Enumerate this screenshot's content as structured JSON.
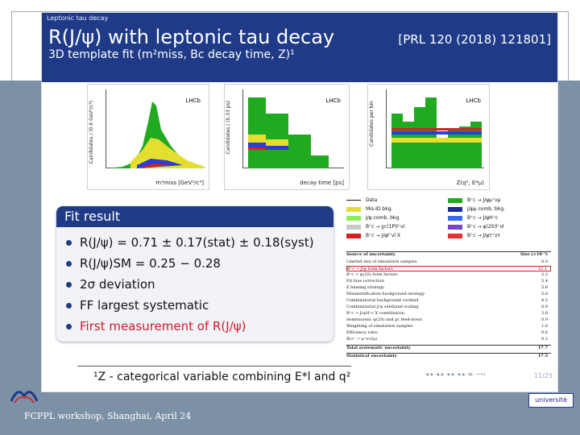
{
  "header": {
    "section": "Leptonic tau decay",
    "title": "R(J/ψ) with leptonic tau decay",
    "reference": "[PRL 120 (2018) 121801]",
    "subtitle": "3D template fit (m²miss, Bc decay time, Z)¹"
  },
  "plots": [
    {
      "lhcb": "LHCb",
      "xlabel": "m²miss [GeV²/c⁴]",
      "ylabel": "Candidates / (0.6 GeV²/c⁴)"
    },
    {
      "lhcb": "LHCb",
      "xlabel": "decay time [ps]",
      "ylabel": "Candidates / (0.33 ps)"
    },
    {
      "lhcb": "LHCb",
      "xlabel": "Z(q², E*μ)",
      "ylabel": "Candidates per bin"
    }
  ],
  "legend": {
    "left": [
      "Data",
      "Mis-ID bkg.",
      "J/ψ comb. bkg.",
      "B⁺c → χc(1P)l⁺νl",
      "B⁺c → J/ψl⁺νl X"
    ],
    "right": [
      "B⁺c → J/ψμ⁺νμ",
      "J/ψμ comb. bkg.",
      "B⁺c → J/ψH⁺c",
      "B⁺c → ψ(2S)l⁺νl",
      "B⁺c → J/ψτ⁺ντ"
    ]
  },
  "fit_result": {
    "title": "Fit result",
    "items": [
      "R(J/ψ) = 0.71 ± 0.17(stat) ± 0.18(syst)",
      "R(J/ψ)SM = 0.25 − 0.28",
      "2σ deviation",
      "FF largest systematic",
      "First measurement of R(J/ψ)"
    ]
  },
  "uncertainty_table": {
    "header_left": "Source of uncertainty",
    "header_right": "Size (×10⁻²)",
    "rows": [
      {
        "label": "Limited size of simulation samples",
        "value": "8.0"
      },
      {
        "label": "B⁺c → J/ψ form factors",
        "value": "12.1"
      },
      {
        "label": "B⁺c → ψ(2S) form factors",
        "value": "3.2"
      },
      {
        "label": "Fit bias correction",
        "value": "5.4"
      },
      {
        "label": "Z binning strategy",
        "value": "5.6"
      },
      {
        "label": "Misidentification background strategy",
        "value": "5.6"
      },
      {
        "label": "Combinatorial background cocktail",
        "value": "4.5"
      },
      {
        "label": "Combinatorial J/ψ sideband scaling",
        "value": "0.9"
      },
      {
        "label": "B⁺c → J/ψH⁺c X contribution",
        "value": "3.6"
      },
      {
        "label": "Semitauonic ψ(2S) and χc feed-down",
        "value": "0.9"
      },
      {
        "label": "Weighting of simulation samples",
        "value": "1.6"
      },
      {
        "label": "Efficiency ratio",
        "value": "0.6"
      },
      {
        "label": "B(τ⁺ → μ⁺ντν̄μ)",
        "value": "0.2"
      },
      {
        "label": "Total systematic uncertainty",
        "value": "17.7"
      },
      {
        "label": "Statistical uncertainty",
        "value": "17.3"
      }
    ]
  },
  "footnote": "¹Z - categorical variable combining E*l and q²",
  "page_number": "11/25",
  "footer": "FCPPL workshop, Shanghai, April 24",
  "logo_right": "université"
}
